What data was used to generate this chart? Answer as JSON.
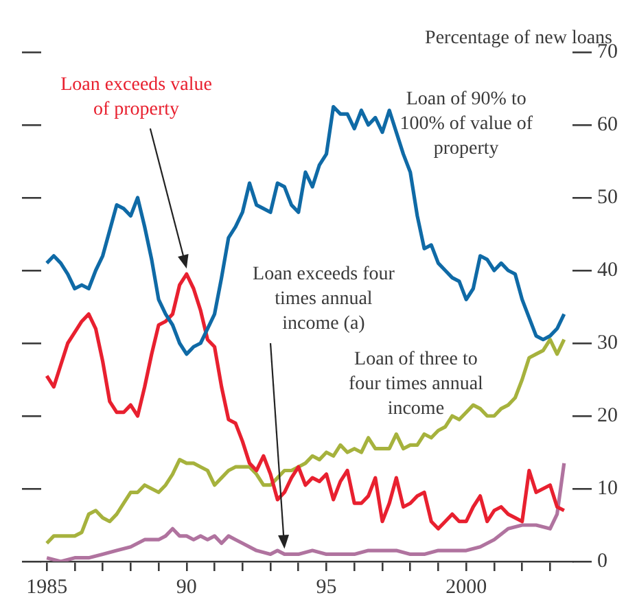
{
  "chart_data": {
    "type": "line",
    "ylabel": "Percentage of new loans",
    "xlim": [
      1984.8,
      2003.8
    ],
    "xticks": [
      {
        "value": 1985,
        "label": "1985"
      },
      {
        "value": 1986,
        "label": null
      },
      {
        "value": 1987,
        "label": null
      },
      {
        "value": 1988,
        "label": null
      },
      {
        "value": 1989,
        "label": null
      },
      {
        "value": 1990,
        "label": "90"
      },
      {
        "value": 1991,
        "label": null
      },
      {
        "value": 1992,
        "label": null
      },
      {
        "value": 1993,
        "label": null
      },
      {
        "value": 1994,
        "label": null
      },
      {
        "value": 1995,
        "label": "95"
      },
      {
        "value": 1996,
        "label": null
      },
      {
        "value": 1997,
        "label": null
      },
      {
        "value": 1998,
        "label": null
      },
      {
        "value": 1999,
        "label": null
      },
      {
        "value": 2000,
        "label": "2000"
      },
      {
        "value": 2001,
        "label": null
      },
      {
        "value": 2002,
        "label": null
      },
      {
        "value": 2003,
        "label": null
      }
    ],
    "ylim": [
      0,
      70
    ],
    "yticks": [
      0,
      10,
      20,
      30,
      40,
      50,
      60,
      70
    ],
    "grid": false,
    "legend": false,
    "marker": "none",
    "line_style": "solid",
    "series": [
      {
        "name": "Loan of 90% to 100% of value of property",
        "color": "#0f6aa6",
        "x": [
          1985,
          1985.25,
          1985.5,
          1985.75,
          1986,
          1986.25,
          1986.5,
          1986.75,
          1987,
          1987.25,
          1987.5,
          1987.75,
          1988,
          1988.25,
          1988.5,
          1988.75,
          1989,
          1989.25,
          1989.5,
          1989.75,
          1990,
          1990.25,
          1990.5,
          1990.75,
          1991,
          1991.25,
          1991.5,
          1991.75,
          1992,
          1992.25,
          1992.5,
          1992.75,
          1993,
          1993.25,
          1993.5,
          1993.75,
          1994,
          1994.25,
          1994.5,
          1994.75,
          1995,
          1995.25,
          1995.5,
          1995.75,
          1996,
          1996.25,
          1996.5,
          1996.75,
          1997,
          1997.25,
          1997.5,
          1997.75,
          1998,
          1998.25,
          1998.5,
          1998.75,
          1999,
          1999.25,
          1999.5,
          1999.75,
          2000,
          2000.25,
          2000.5,
          2000.75,
          2001,
          2001.25,
          2001.5,
          2001.75,
          2002,
          2002.25,
          2002.5,
          2002.75,
          2003,
          2003.25,
          2003.5
        ],
        "values": [
          41,
          42,
          41,
          39.5,
          37.5,
          38,
          37.5,
          40,
          42,
          45.5,
          49,
          48.5,
          47.5,
          50,
          46,
          41.5,
          36,
          34,
          32.5,
          30,
          28.5,
          29.5,
          30,
          32,
          34,
          39,
          44.5,
          46,
          48,
          52,
          49,
          48.5,
          48,
          52,
          51.5,
          49,
          48,
          53.5,
          51.5,
          54.5,
          56,
          62.5,
          61.5,
          61.5,
          59.5,
          62,
          60,
          61,
          59,
          62,
          59,
          56,
          53.5,
          47.5,
          43,
          43.5,
          41,
          40,
          39,
          38.5,
          36,
          37.5,
          42,
          41.5,
          40,
          41,
          40,
          39.5,
          36,
          33.5,
          31,
          30.5,
          31,
          32,
          34
        ]
      },
      {
        "name": "Loan exceeds value of property",
        "color": "#e8202f",
        "x": [
          1985,
          1985.25,
          1985.5,
          1985.75,
          1986,
          1986.25,
          1986.5,
          1986.75,
          1987,
          1987.25,
          1987.5,
          1987.75,
          1988,
          1988.25,
          1988.5,
          1988.75,
          1989,
          1989.25,
          1989.5,
          1989.75,
          1990,
          1990.25,
          1990.5,
          1990.75,
          1991,
          1991.25,
          1991.5,
          1991.75,
          1992,
          1992.25,
          1992.5,
          1992.75,
          1993,
          1993.25,
          1993.5,
          1993.75,
          1994,
          1994.25,
          1994.5,
          1994.75,
          1995,
          1995.25,
          1995.5,
          1995.75,
          1996,
          1996.25,
          1996.5,
          1996.75,
          1997,
          1997.25,
          1997.5,
          1997.75,
          1998,
          1998.25,
          1998.5,
          1998.75,
          1999,
          1999.25,
          1999.5,
          1999.75,
          2000,
          2000.25,
          2000.5,
          2000.75,
          2001,
          2001.25,
          2001.5,
          2001.75,
          2002,
          2002.25,
          2002.5,
          2002.75,
          2003,
          2003.25,
          2003.5
        ],
        "values": [
          25.5,
          24,
          27,
          30,
          31.5,
          33,
          34,
          32,
          27.5,
          22,
          20.5,
          20.5,
          21.5,
          20,
          24,
          28.5,
          32.5,
          33,
          34,
          38,
          39.5,
          37.5,
          34.5,
          30.5,
          29.5,
          24,
          19.5,
          19,
          16.5,
          13.5,
          12.5,
          14.5,
          12,
          8.5,
          9.5,
          11.5,
          13,
          10.5,
          11.5,
          11,
          12,
          8.5,
          11,
          12.5,
          8,
          8,
          9,
          11.5,
          5.5,
          8,
          11.5,
          7.5,
          8,
          9,
          9.5,
          5.5,
          4.5,
          5.5,
          6.5,
          5.5,
          5.5,
          7.5,
          9,
          5.5,
          7,
          7.5,
          6.5,
          6,
          5.5,
          12.5,
          9.5,
          10,
          10.5,
          7.5,
          7
        ]
      },
      {
        "name": "Loan of three to four times annual income",
        "color": "#a6b23d",
        "x": [
          1985,
          1985.25,
          1985.5,
          1985.75,
          1986,
          1986.25,
          1986.5,
          1986.75,
          1987,
          1987.25,
          1987.5,
          1987.75,
          1988,
          1988.25,
          1988.5,
          1988.75,
          1989,
          1989.25,
          1989.5,
          1989.75,
          1990,
          1990.25,
          1990.5,
          1990.75,
          1991,
          1991.25,
          1991.5,
          1991.75,
          1992,
          1992.25,
          1992.5,
          1992.75,
          1993,
          1993.25,
          1993.5,
          1993.75,
          1994,
          1994.25,
          1994.5,
          1994.75,
          1995,
          1995.25,
          1995.5,
          1995.75,
          1996,
          1996.25,
          1996.5,
          1996.75,
          1997,
          1997.25,
          1997.5,
          1997.75,
          1998,
          1998.25,
          1998.5,
          1998.75,
          1999,
          1999.25,
          1999.5,
          1999.75,
          2000,
          2000.25,
          2000.5,
          2000.75,
          2001,
          2001.25,
          2001.5,
          2001.75,
          2002,
          2002.25,
          2002.5,
          2002.75,
          2003,
          2003.25,
          2003.5
        ],
        "values": [
          2.5,
          3.5,
          3.5,
          3.5,
          3.5,
          4,
          6.5,
          7,
          6,
          5.5,
          6.5,
          8,
          9.5,
          9.5,
          10.5,
          10,
          9.5,
          10.5,
          12,
          14,
          13.5,
          13.5,
          13,
          12.5,
          10.5,
          11.5,
          12.5,
          13,
          13,
          13,
          12,
          10.5,
          10.5,
          11.5,
          12.5,
          12.5,
          13,
          13.5,
          14.5,
          14,
          15,
          14.5,
          16,
          15,
          15.5,
          15,
          17,
          15.5,
          15.5,
          15.5,
          17.5,
          15.5,
          16,
          16,
          17.5,
          17,
          18,
          18.5,
          20,
          19.5,
          20.5,
          21.5,
          21,
          20,
          20,
          21,
          21.5,
          22.5,
          25,
          28,
          28.5,
          29,
          30.5,
          28.5,
          30.5
        ]
      },
      {
        "name": "Loan exceeds four times annual income (a)",
        "color": "#b0739f",
        "x": [
          1985,
          1985.5,
          1986,
          1986.5,
          1987,
          1987.5,
          1988,
          1988.5,
          1989,
          1989.25,
          1989.5,
          1989.75,
          1990,
          1990.25,
          1990.5,
          1990.75,
          1991,
          1991.25,
          1991.5,
          1991.75,
          1992,
          1992.5,
          1993,
          1993.25,
          1993.5,
          1994,
          1994.5,
          1995,
          1996,
          1996.5,
          1997,
          1997.5,
          1998,
          1998.5,
          1999,
          1999.5,
          2000,
          2000.5,
          2001,
          2001.5,
          2002,
          2002.5,
          2003,
          2003.25,
          2003.5
        ],
        "values": [
          0.5,
          0,
          0.5,
          0.5,
          1,
          1.5,
          2,
          3,
          3,
          3.5,
          4.5,
          3.5,
          3.5,
          3,
          3.5,
          3,
          3.5,
          2.5,
          3.5,
          3,
          2.5,
          1.5,
          1,
          1.5,
          1,
          1,
          1.5,
          1,
          1,
          1.5,
          1.5,
          1.5,
          1,
          1,
          1.5,
          1.5,
          1.5,
          2,
          3,
          4.5,
          5,
          5,
          4.5,
          6.5,
          13.5
        ]
      }
    ]
  }
}
